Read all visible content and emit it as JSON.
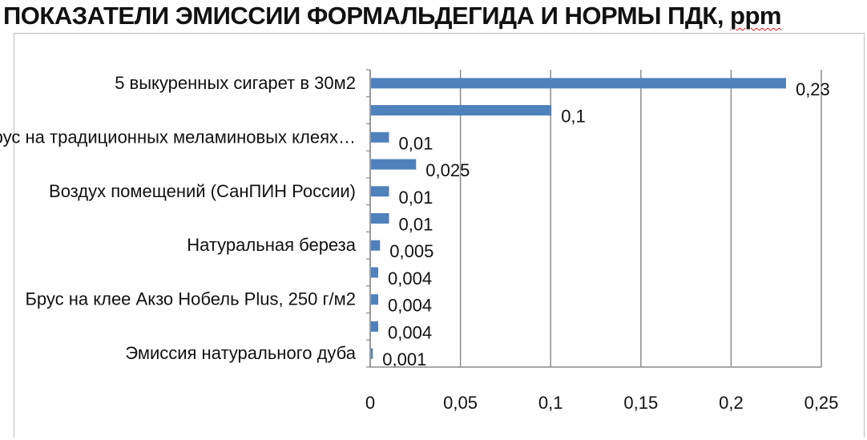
{
  "title_main": "ПОКАЗАТЕЛИ ЭМИССИИ ФОРМАЛЬДЕГИДА И НОРМЫ ПДК, ",
  "title_unit": "ppm",
  "colors": {
    "bar": "#4f81bd",
    "grid": "#8c8c8c",
    "text": "#111111"
  },
  "chart_data": {
    "type": "bar",
    "orientation": "horizontal",
    "title": "ПОКАЗАТЕЛИ ЭМИССИИ ФОРМАЛЬДЕГИДА И НОРМЫ ПДК, ppm",
    "categories": [
      "5 выкуренных сигарет в 30м2",
      "",
      "Брус на традиционных меламиновых клеях…",
      "",
      "Воздух помещений (СанПИН России)",
      "",
      "Натуральная береза",
      "",
      "Брус на клее Акзо Нобель Plus, 250 г/м2",
      "",
      "Эмиссия натурального дуба"
    ],
    "values": [
      0.23,
      0.1,
      0.01,
      0.025,
      0.01,
      0.01,
      0.005,
      0.004,
      0.004,
      0.004,
      0.001
    ],
    "value_labels": [
      "0,23",
      "0,1",
      "0,01",
      "0,025",
      "0,01",
      "0,01",
      "0,005",
      "0,004",
      "0,004",
      "0,004",
      "0,001"
    ],
    "xlim": [
      0,
      0.25
    ],
    "xticks": [
      0,
      0.05,
      0.1,
      0.15,
      0.2,
      0.25
    ],
    "xtick_labels": [
      "0",
      "0,05",
      "0,1",
      "0,15",
      "0,2",
      "0,25"
    ],
    "grid": "vertical",
    "legend": "none"
  }
}
